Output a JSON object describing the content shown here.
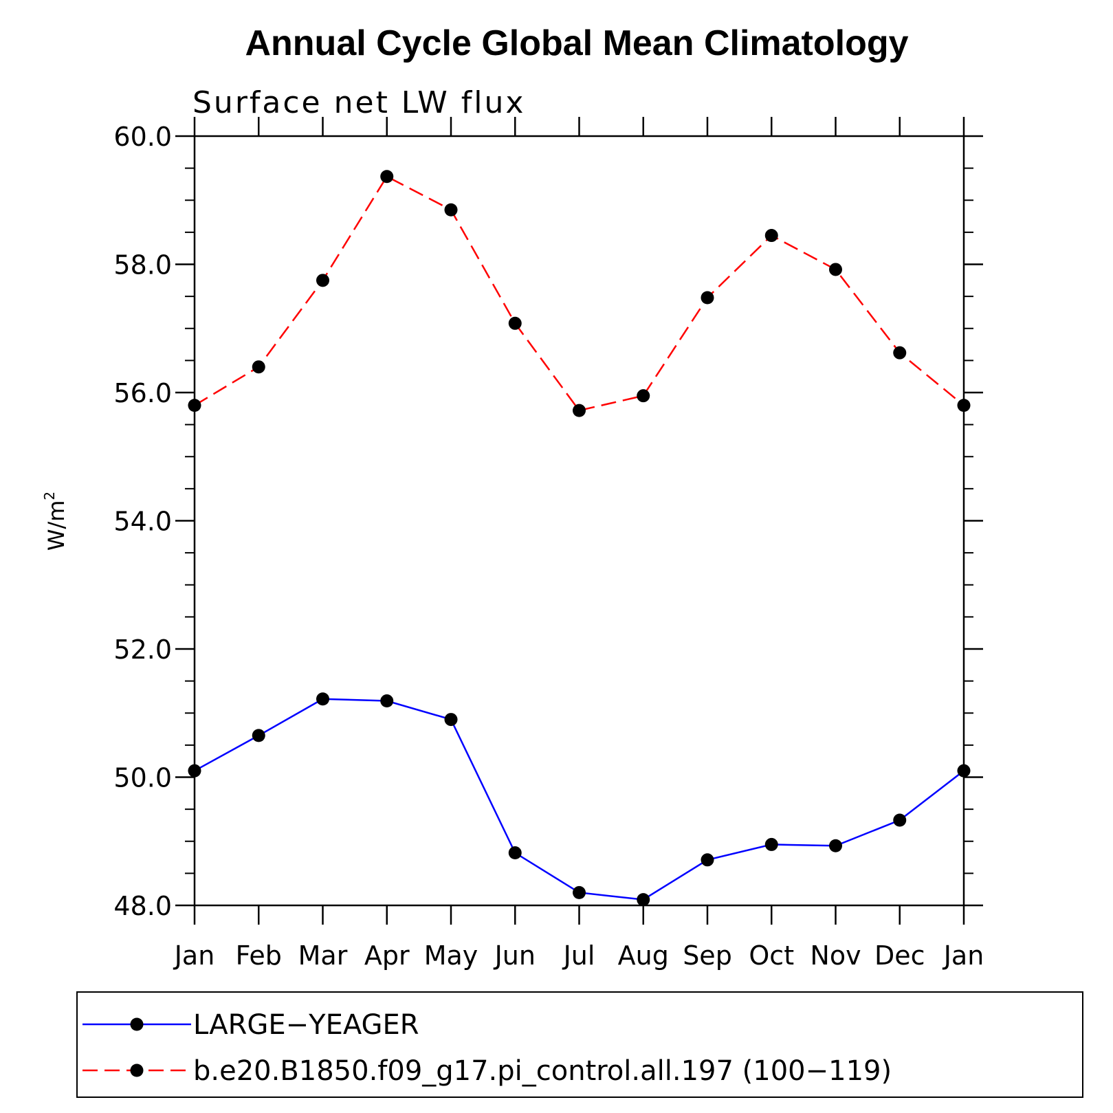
{
  "chart_data": {
    "type": "line",
    "title": "Annual Cycle Global Mean Climatology",
    "subtitle": "Surface net LW flux",
    "ylabel_base": "W/m",
    "ylabel_sup": "2",
    "xlabel": "",
    "ylim": [
      48.0,
      60.0
    ],
    "y_ticks": [
      48.0,
      50.0,
      52.0,
      54.0,
      56.0,
      58.0,
      60.0
    ],
    "y_tick_labels": [
      "48.0",
      "50.0",
      "52.0",
      "54.0",
      "56.0",
      "58.0",
      "60.0"
    ],
    "categories": [
      "Jan",
      "Feb",
      "Mar",
      "Apr",
      "May",
      "Jun",
      "Jul",
      "Aug",
      "Sep",
      "Oct",
      "Nov",
      "Dec",
      "Jan"
    ],
    "series": [
      {
        "name": "LARGE−YEAGER",
        "color": "#0000ff",
        "line_style": "solid",
        "values": [
          50.1,
          50.65,
          51.22,
          51.19,
          50.9,
          48.82,
          48.2,
          48.09,
          48.71,
          48.95,
          48.93,
          49.33,
          50.1
        ]
      },
      {
        "name": "b.e20.B1850.f09_g17.pi_control.all.197 (100−119)",
        "color": "#ff0000",
        "line_style": "dashed",
        "values": [
          55.8,
          56.4,
          57.75,
          59.37,
          58.85,
          57.08,
          55.72,
          55.95,
          57.48,
          58.45,
          57.92,
          56.62,
          55.8
        ]
      }
    ],
    "legend_position": "bottom"
  }
}
